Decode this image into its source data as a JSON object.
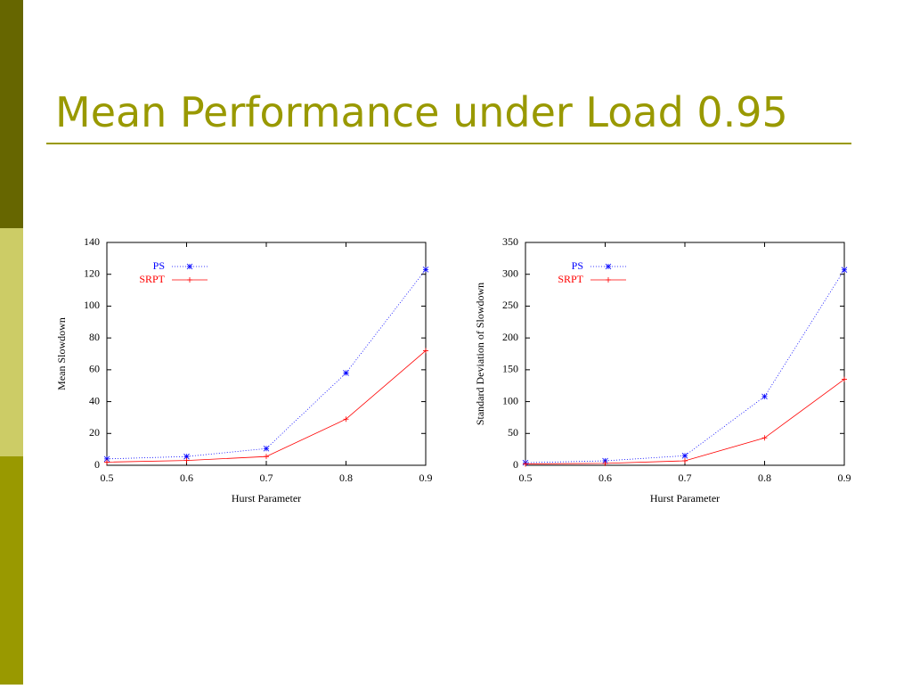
{
  "title": "Mean Performance under Load 0.95",
  "chart_data": [
    {
      "type": "line",
      "xlabel": "Hurst Parameter",
      "ylabel": "Mean Slowdown",
      "x": [
        0.5,
        0.6,
        0.7,
        0.8,
        0.9
      ],
      "xlim": [
        0.5,
        0.9
      ],
      "xticks": [
        0.5,
        0.6,
        0.7,
        0.8,
        0.9
      ],
      "ylim": [
        0,
        140
      ],
      "yticks": [
        0,
        20,
        40,
        60,
        80,
        100,
        120,
        140
      ],
      "legend": "upper left",
      "series": [
        {
          "name": "PS",
          "color": "#0000ff",
          "line_style": "dotted",
          "marker": "star",
          "values": [
            4,
            5.5,
            10.5,
            58,
            123
          ]
        },
        {
          "name": "SRPT",
          "color": "#ff0000",
          "line_style": "solid",
          "marker": "plus",
          "values": [
            2,
            3,
            5.5,
            29,
            72
          ]
        }
      ]
    },
    {
      "type": "line",
      "xlabel": "Hurst Parameter",
      "ylabel": "Standard Deviation of Slowdown",
      "x": [
        0.5,
        0.6,
        0.7,
        0.8,
        0.9
      ],
      "xlim": [
        0.5,
        0.9
      ],
      "xticks": [
        0.5,
        0.6,
        0.7,
        0.8,
        0.9
      ],
      "ylim": [
        0,
        350
      ],
      "yticks": [
        0,
        50,
        100,
        150,
        200,
        250,
        300,
        350
      ],
      "legend": "upper left",
      "series": [
        {
          "name": "PS",
          "color": "#0000ff",
          "line_style": "dotted",
          "marker": "star",
          "values": [
            4,
            7,
            15,
            108,
            307
          ]
        },
        {
          "name": "SRPT",
          "color": "#ff0000",
          "line_style": "solid",
          "marker": "plus",
          "values": [
            2,
            3,
            7,
            43,
            135
          ]
        }
      ]
    }
  ]
}
